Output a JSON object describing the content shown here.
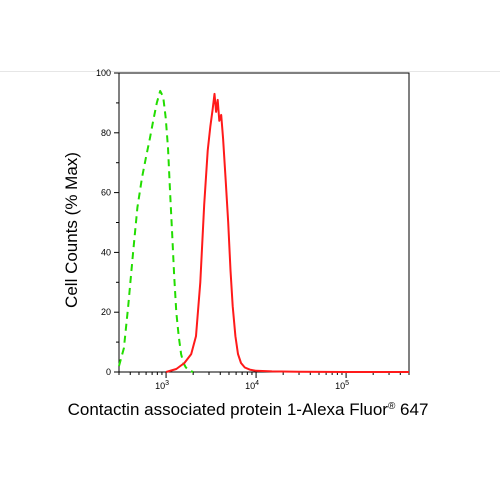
{
  "chart_data": {
    "type": "line",
    "title": "",
    "ylabel": "Cell Counts (% Max)",
    "xlabel_main": "Contactin associated protein 1-Alexa Fluor",
    "xlabel_sup": "®",
    "xlabel_tail": " 647",
    "x_scale": "log",
    "xlim": [
      300,
      500000
    ],
    "ylim": [
      0,
      100
    ],
    "y_ticks": [
      "0",
      "20",
      "40",
      "60",
      "80",
      "100"
    ],
    "x_ticks": [
      {
        "base": "10",
        "exp": "3",
        "value": 1000
      },
      {
        "base": "10",
        "exp": "4",
        "value": 10000
      },
      {
        "base": "10",
        "exp": "5",
        "value": 100000
      }
    ],
    "grid": false,
    "series": [
      {
        "name": "",
        "color": "#22dd00",
        "style": "dashed",
        "x": [
          300,
          340,
          380,
          430,
          480,
          540,
          600,
          660,
          720,
          790,
          860,
          930,
          990,
          1050,
          1110,
          1170,
          1230,
          1300,
          1380,
          1470,
          1560,
          1660,
          1760,
          1870,
          2000
        ],
        "y": [
          2,
          8,
          22,
          40,
          55,
          65,
          72,
          78,
          84,
          90,
          94,
          92,
          85,
          75,
          60,
          46,
          32,
          20,
          12,
          6,
          3,
          1.5,
          0.8,
          0.3,
          0
        ]
      },
      {
        "name": "",
        "color": "#ff1a1a",
        "style": "solid",
        "x": [
          1000,
          1300,
          1600,
          1900,
          2150,
          2400,
          2650,
          2900,
          3100,
          3300,
          3450,
          3600,
          3750,
          3900,
          4100,
          4300,
          4600,
          4900,
          5200,
          5500,
          5900,
          6300,
          6800,
          7500,
          8500,
          10000,
          15000,
          30000,
          100000,
          500000
        ],
        "y": [
          0,
          1,
          3,
          6,
          12,
          30,
          56,
          74,
          82,
          88,
          93,
          87,
          91,
          84,
          86,
          78,
          64,
          50,
          34,
          22,
          12,
          6,
          3,
          1.5,
          0.8,
          0.4,
          0.2,
          0.1,
          0,
          0
        ]
      }
    ]
  }
}
